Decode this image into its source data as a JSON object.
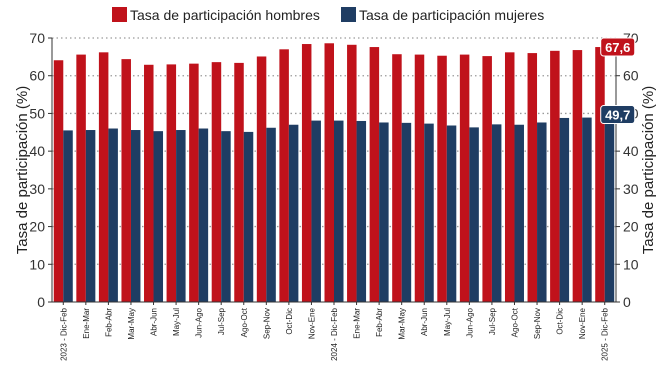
{
  "chart_data": {
    "type": "bar",
    "categories": [
      "2023 - Dic-Feb",
      "Ene-Mar",
      "Feb-Abr",
      "Mar-May",
      "Abr-Jun",
      "May-Jul",
      "Jun-Ago",
      "Jul-Sep",
      "Ago-Oct",
      "Sep-Nov",
      "Oct-Dic",
      "Nov-Ene",
      "2024 - Dic-Feb",
      "Ene-Mar",
      "Feb-Abr",
      "Mar-May",
      "Abr-Jun",
      "May-Jul",
      "Jun-Ago",
      "Jul-Sep",
      "Ago-Oct",
      "Sep-Nov",
      "Oct-Dic",
      "Nov-Ene",
      "2025 - Dic-Feb"
    ],
    "series": [
      {
        "name": "Tasa de participación hombres",
        "color": "#c0121b",
        "values": [
          64.1,
          65.6,
          66.2,
          64.4,
          62.9,
          63.0,
          63.2,
          63.6,
          63.4,
          65.1,
          67.0,
          68.4,
          68.6,
          68.2,
          67.6,
          65.7,
          65.6,
          65.3,
          65.6,
          65.2,
          66.2,
          66.0,
          66.6,
          66.8,
          67.6
        ]
      },
      {
        "name": "Tasa de participación mujeres",
        "color": "#1f3d63",
        "values": [
          45.5,
          45.6,
          46.0,
          45.6,
          45.3,
          45.6,
          46.0,
          45.3,
          45.1,
          46.2,
          47.0,
          48.1,
          48.1,
          48.0,
          47.6,
          47.5,
          47.3,
          46.8,
          46.3,
          47.1,
          47.0,
          47.6,
          48.8,
          48.9,
          49.7
        ]
      }
    ],
    "ylabel": "Tasa de participación (%)",
    "ylabel_right": "Tasa de participación (%)",
    "ylim": [
      0,
      70
    ],
    "yticks": [
      0,
      10,
      20,
      30,
      40,
      50,
      60,
      70
    ],
    "grid": true,
    "legend": "top-center",
    "annotations": [
      {
        "text": "67,6",
        "series": 0,
        "index": 24,
        "color": "#c0121b"
      },
      {
        "text": "49,7",
        "series": 1,
        "index": 24,
        "color": "#1f3d63"
      }
    ]
  }
}
